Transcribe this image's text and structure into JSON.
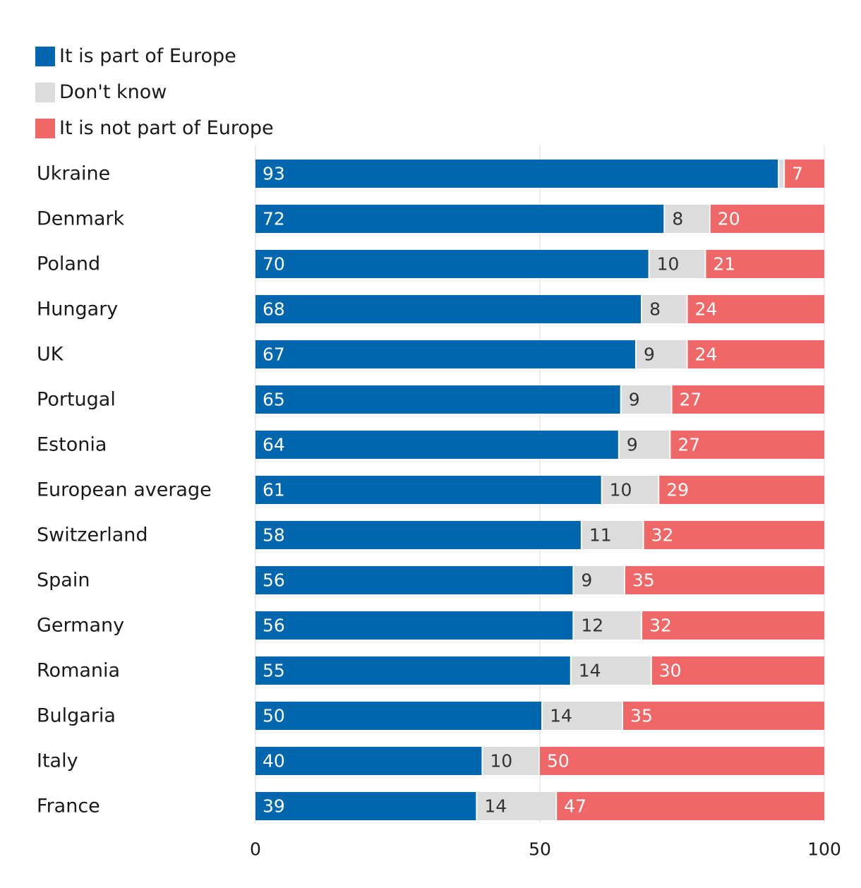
{
  "chart_data": {
    "type": "bar",
    "orientation": "horizontal",
    "stacked": true,
    "title": "",
    "xlabel": "",
    "ylabel": "",
    "xlim": [
      0,
      100
    ],
    "x_ticks": [
      "0",
      "50",
      "100"
    ],
    "grid": true,
    "legend_position": "top-left",
    "categories": [
      "Ukraine",
      "Denmark",
      "Poland",
      "Hungary",
      "UK",
      "Portugal",
      "Estonia",
      "European average",
      "Switzerland",
      "Spain",
      "Germany",
      "Romania",
      "Bulgaria",
      "Italy",
      "France"
    ],
    "series": [
      {
        "name": "It is part of Europe",
        "color": "#0066ad",
        "label_color": "#ffffff",
        "values": [
          93,
          72,
          70,
          68,
          67,
          65,
          64,
          61,
          58,
          56,
          56,
          55,
          50,
          40,
          39
        ]
      },
      {
        "name": "Don't know",
        "color": "#dcdcdc",
        "label_color": "#333333",
        "values": [
          1,
          8,
          10,
          8,
          9,
          9,
          9,
          10,
          11,
          9,
          12,
          14,
          14,
          10,
          14
        ]
      },
      {
        "name": "It is not part of Europe",
        "color": "#f06767",
        "label_color": "#ffffff",
        "values": [
          7,
          20,
          21,
          24,
          24,
          27,
          27,
          29,
          32,
          35,
          32,
          30,
          35,
          50,
          47
        ]
      }
    ],
    "value_labels": [
      [
        "93",
        "",
        "7"
      ],
      [
        "72",
        "8",
        "20"
      ],
      [
        "70",
        "10",
        "21"
      ],
      [
        "68",
        "8",
        "24"
      ],
      [
        "67",
        "9",
        "24"
      ],
      [
        "65",
        "9",
        "27"
      ],
      [
        "64",
        "9",
        "27"
      ],
      [
        "61",
        "10",
        "29"
      ],
      [
        "58",
        "11",
        "32"
      ],
      [
        "56",
        "9",
        "35"
      ],
      [
        "56",
        "12",
        "32"
      ],
      [
        "55",
        "14",
        "30"
      ],
      [
        "50",
        "14",
        "35"
      ],
      [
        "40",
        "10",
        "50"
      ],
      [
        "39",
        "14",
        "47"
      ]
    ]
  }
}
